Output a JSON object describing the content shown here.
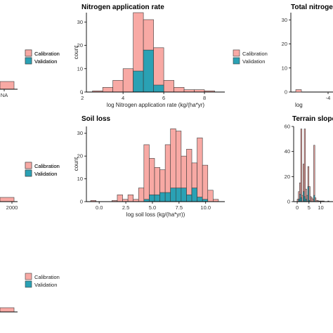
{
  "colors": {
    "calibration": "#f8a9a4",
    "validation": "#2aa1b4",
    "outline": "#3a3a3a"
  },
  "chart_data": [
    {
      "id": "left-top",
      "type": "bar",
      "title": "",
      "xlabel": "",
      "ylabel": "",
      "x_tick_labels": [
        "NA"
      ],
      "series": [
        {
          "name": "Calibration",
          "values": [
            3
          ]
        },
        {
          "name": "Validation",
          "values": [
            0
          ]
        }
      ],
      "legend": [
        "Calibration",
        "Validation"
      ],
      "legend_position": "left"
    },
    {
      "id": "nitrogen-application-rate",
      "type": "bar",
      "title": "Nitrogen application rate",
      "xlabel": "log Nitrogen application rate (kg/(ha*yr)",
      "ylabel": "count",
      "xlim": [
        2.2,
        9.0
      ],
      "ylim": [
        0,
        34
      ],
      "x_ticks": [
        2,
        4,
        6,
        8
      ],
      "y_ticks": [
        0,
        10,
        20,
        30
      ],
      "bin_edges": [
        2.5,
        3.0,
        3.5,
        4.0,
        4.5,
        5.0,
        5.5,
        6.0,
        6.5,
        7.0,
        7.5,
        8.0,
        8.5
      ],
      "series": [
        {
          "name": "Calibration",
          "values": [
            0.5,
            2,
            5,
            10,
            34,
            31,
            19,
            5,
            2,
            1,
            1,
            0.5
          ]
        },
        {
          "name": "Validation",
          "values": [
            0,
            0,
            0,
            0,
            9,
            18,
            3,
            0,
            0,
            0,
            0,
            0
          ]
        }
      ],
      "legend": [
        "Calibration",
        "Validation"
      ],
      "legend_position": "left"
    },
    {
      "id": "total-nitrogen",
      "type": "bar",
      "title": "Total nitrogen",
      "xlabel": "log",
      "ylabel": "",
      "y_ticks": [
        0,
        10,
        20,
        30
      ],
      "x_tick_labels": [
        "-4"
      ],
      "series": [
        {
          "name": "Calibration",
          "values": [
            1
          ]
        },
        {
          "name": "Validation",
          "values": [
            0
          ]
        }
      ],
      "legend": [
        "Calibration",
        "Validation"
      ],
      "legend_position": "left"
    },
    {
      "id": "left-middle",
      "type": "bar",
      "title": "",
      "xlabel": "",
      "ylabel": "",
      "x_tick_labels": [
        "2000"
      ],
      "series": [
        {
          "name": "Calibration",
          "values": [
            1.5
          ]
        },
        {
          "name": "Validation",
          "values": [
            0
          ]
        }
      ],
      "legend": [
        "Calibration",
        "Validation"
      ],
      "legend_position": "left"
    },
    {
      "id": "soil-loss",
      "type": "bar",
      "title": "Soil loss",
      "xlabel": "log soil loss (kg/(ha*yr))",
      "ylabel": "count",
      "xlim": [
        -1.2,
        11.8
      ],
      "ylim": [
        0,
        33
      ],
      "x_ticks": [
        0.0,
        2.5,
        5.0,
        7.5,
        10.0
      ],
      "x_tick_labels": [
        "0.0",
        "2.5",
        "5.0",
        "7.5",
        "10.0"
      ],
      "y_ticks": [
        0,
        10,
        20,
        30
      ],
      "bin_edges": [
        -0.8,
        -0.3,
        0.2,
        0.7,
        1.2,
        1.7,
        2.2,
        2.7,
        3.2,
        3.7,
        4.2,
        4.7,
        5.2,
        5.7,
        6.2,
        6.7,
        7.2,
        7.7,
        8.2,
        8.7,
        9.2,
        9.7,
        10.2,
        10.7,
        11.2
      ],
      "series": [
        {
          "name": "Calibration",
          "values": [
            0.5,
            0,
            0,
            0,
            0.5,
            3,
            1,
            3,
            1,
            6,
            25,
            19,
            15,
            14,
            25,
            32,
            31,
            20,
            23,
            17,
            28,
            16,
            5,
            1
          ]
        },
        {
          "name": "Validation",
          "values": [
            0,
            0,
            0,
            0,
            0,
            0,
            0,
            0,
            0,
            0,
            1,
            3,
            3,
            4,
            4,
            6,
            6,
            6,
            3,
            6,
            2,
            1,
            0,
            0
          ]
        }
      ],
      "legend": [
        "Calibration",
        "Validation"
      ],
      "legend_position": "left"
    },
    {
      "id": "terrain-slope",
      "type": "bar",
      "title": "Terrain slope",
      "xlabel": "",
      "ylabel": "",
      "xlim": [
        -1.5,
        17
      ],
      "ylim": [
        0,
        60
      ],
      "x_ticks": [
        0,
        5,
        10
      ],
      "y_ticks": [
        0,
        20,
        40,
        60
      ],
      "bin_edges": [
        0,
        0.5,
        1,
        1.5,
        2,
        2.5,
        3,
        3.5,
        4,
        4.5,
        5,
        5.5,
        6,
        6.5,
        7,
        7.5,
        8,
        8.5,
        9,
        9.5,
        10,
        10.5,
        11,
        11.5,
        12,
        12.5,
        13,
        13.5
      ],
      "series": [
        {
          "name": "Calibration",
          "values": [
            2,
            8,
            15,
            58,
            5,
            30,
            58,
            10,
            5,
            28,
            12,
            4,
            3,
            2,
            45,
            3,
            1,
            1,
            0.5,
            0.5,
            0.5,
            0.5,
            0.5,
            0,
            0,
            0,
            0.5
          ]
        },
        {
          "name": "Validation",
          "values": [
            0,
            2,
            6,
            3,
            0,
            8,
            4,
            2,
            0,
            12,
            1,
            0,
            0,
            0,
            5,
            0,
            0,
            0,
            0,
            0,
            0,
            0,
            0,
            0,
            0,
            0,
            0
          ]
        }
      ],
      "legend": [],
      "legend_position": "none"
    },
    {
      "id": "left-bottom",
      "type": "bar",
      "title": "",
      "xlabel": "",
      "ylabel": "",
      "series": [
        {
          "name": "Calibration",
          "values": [
            2
          ]
        },
        {
          "name": "Validation",
          "values": [
            0
          ]
        }
      ],
      "legend": [
        "Calibration",
        "Validation"
      ],
      "legend_position": "left"
    }
  ]
}
